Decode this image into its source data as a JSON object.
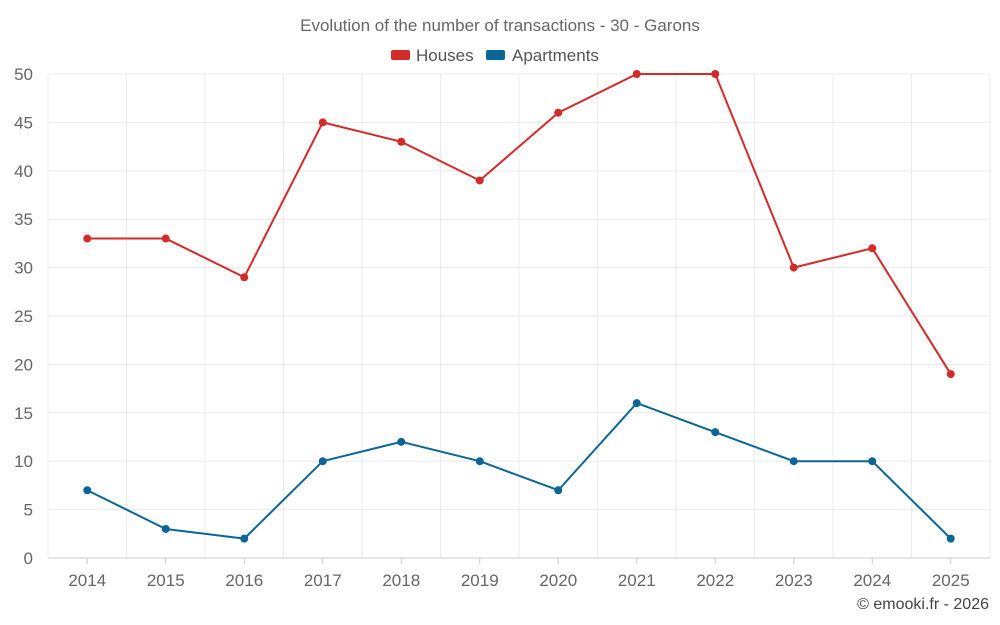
{
  "chart_data": {
    "type": "line",
    "title": "Evolution of the number of transactions - 30 - Garons",
    "categories": [
      "2014",
      "2015",
      "2016",
      "2017",
      "2018",
      "2019",
      "2020",
      "2021",
      "2022",
      "2023",
      "2024",
      "2025"
    ],
    "series": [
      {
        "name": "Houses",
        "color": "#d32a2a",
        "values": [
          33,
          33,
          29,
          45,
          43,
          39,
          46,
          50,
          50,
          30,
          32,
          19
        ]
      },
      {
        "name": "Apartments",
        "color": "#0b6697",
        "values": [
          7,
          3,
          2,
          10,
          12,
          10,
          7,
          16,
          13,
          10,
          10,
          2
        ]
      }
    ],
    "yticks": [
      "0",
      "5",
      "10",
      "15",
      "20",
      "25",
      "30",
      "35",
      "40",
      "45",
      "50"
    ],
    "ylim": [
      0,
      50
    ],
    "xlabel": "",
    "ylabel": "",
    "grid": true,
    "legend_position": "top-center"
  },
  "credit": "© emooki.fr - 2026"
}
